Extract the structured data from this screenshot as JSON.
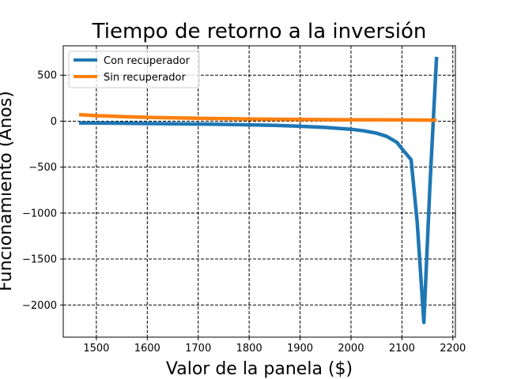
{
  "chart_data": {
    "type": "line",
    "title": "Tiempo de retorno a la inversión",
    "xlabel": "Valor de la panela ($)",
    "ylabel": "Funcionamiento (Años)",
    "xlim": [
      1435,
      2205
    ],
    "ylim": [
      -2350,
      820
    ],
    "xticks": [
      1500,
      1600,
      1700,
      1800,
      1900,
      2000,
      2100,
      2200
    ],
    "yticks": [
      500,
      0,
      -500,
      -1000,
      -1500,
      -2000
    ],
    "grid": true,
    "grid_style": "dashed",
    "legend_position": "upper-left",
    "series": [
      {
        "name": "Con recuperador",
        "color": "#1f77b4",
        "x": [
          1466,
          1500,
          1550,
          1600,
          1650,
          1700,
          1750,
          1800,
          1850,
          1900,
          1950,
          2000,
          2025,
          2050,
          2070,
          2090,
          2100,
          2118,
          2130,
          2143,
          2155,
          2168
        ],
        "y": [
          -20,
          -21,
          -23,
          -26,
          -28,
          -31,
          -35,
          -40,
          -46,
          -55,
          -68,
          -88,
          -105,
          -130,
          -165,
          -230,
          -300,
          -420,
          -1100,
          -2190,
          -700,
          700
        ]
      },
      {
        "name": "Sin recuperador",
        "color": "#ff7f0e",
        "x": [
          1466,
          1500,
          1550,
          1600,
          1650,
          1700,
          1750,
          1800,
          1850,
          1900,
          1950,
          2000,
          2050,
          2100,
          2150,
          2168
        ],
        "y": [
          72,
          60,
          50,
          42,
          36,
          31,
          27,
          24,
          21,
          19,
          17,
          15,
          14,
          13,
          12,
          12
        ]
      }
    ]
  }
}
